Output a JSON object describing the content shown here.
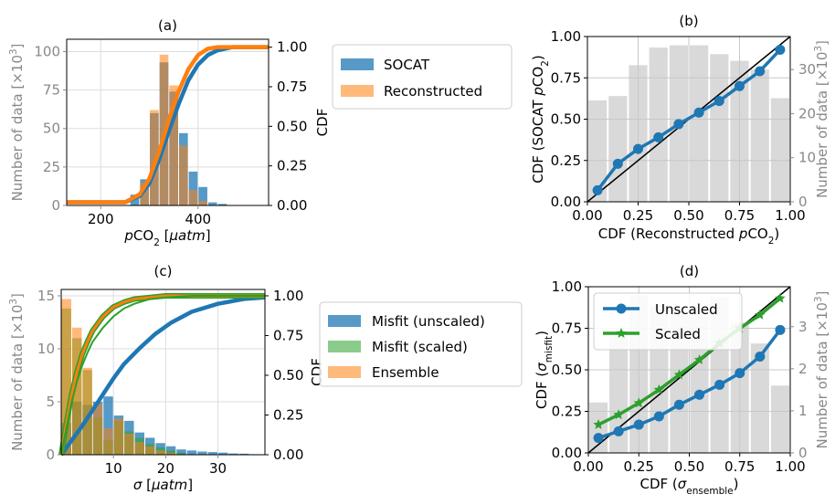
{
  "chart_data": [
    {
      "id": "a",
      "type": "histogram+cdf",
      "title": "(a)",
      "xlabel": "pCO2 [μatm]",
      "ylabel_left": "Number of data [×10³]",
      "ylabel_right": "CDF",
      "xlim": [
        130,
        545
      ],
      "ylim_left": [
        0,
        108
      ],
      "ylim_right": [
        0,
        1.05
      ],
      "xticks": [
        200,
        400
      ],
      "yticks_left": [
        0,
        25,
        50,
        75,
        100
      ],
      "yticks_right": [
        "0.00",
        "0.25",
        "0.50",
        "0.75",
        "1.00"
      ],
      "legend_position": "outside-right",
      "legend": [
        {
          "label": "SOCAT",
          "color": "#1f77b4"
        },
        {
          "label": "Reconstructed",
          "color": "#ff7f0e"
        }
      ],
      "series": [
        {
          "name": "SOCAT",
          "bins": [
            [
              260,
              280,
              7
            ],
            [
              280,
              300,
              17
            ],
            [
              300,
              320,
              60
            ],
            [
              320,
              340,
              93
            ],
            [
              340,
              360,
              74
            ],
            [
              360,
              380,
              47
            ],
            [
              380,
              400,
              22
            ],
            [
              400,
              420,
              12
            ],
            [
              420,
              440,
              2
            ],
            [
              440,
              460,
              1
            ]
          ]
        },
        {
          "name": "Reconstructed",
          "bins": [
            [
              280,
              300,
              15
            ],
            [
              300,
              320,
              62
            ],
            [
              320,
              340,
              98
            ],
            [
              340,
              360,
              78
            ],
            [
              360,
              380,
              39
            ],
            [
              380,
              400,
              10
            ],
            [
              400,
              420,
              3
            ]
          ]
        }
      ],
      "cdf": [
        {
          "name": "SOCAT",
          "x": [
            130,
            250,
            280,
            300,
            320,
            340,
            360,
            380,
            400,
            420,
            440,
            470,
            545
          ],
          "y": [
            0.02,
            0.02,
            0.06,
            0.14,
            0.29,
            0.47,
            0.64,
            0.79,
            0.89,
            0.95,
            0.98,
            1.0,
            1.0
          ]
        },
        {
          "name": "Reconstructed",
          "x": [
            130,
            250,
            280,
            300,
            320,
            340,
            360,
            380,
            400,
            420,
            440,
            545
          ],
          "y": [
            0.02,
            0.02,
            0.07,
            0.17,
            0.34,
            0.54,
            0.72,
            0.86,
            0.95,
            0.99,
            1.0,
            1.0
          ]
        }
      ]
    },
    {
      "id": "b",
      "type": "line+bar",
      "title": "(b)",
      "xlabel": "CDF (Reconstructed pCO2)",
      "ylabel_left": "CDF (SOCAT pCO2)",
      "ylabel_right": "Number of data [×10³]",
      "xlim": [
        0,
        1
      ],
      "ylim_left": [
        0,
        1
      ],
      "ylim_right": [
        0,
        37.5
      ],
      "xticks": [
        "0.00",
        "0.25",
        "0.50",
        "0.75",
        "1.00"
      ],
      "yticks_left": [
        "0.00",
        "0.25",
        "0.50",
        "0.75",
        "1.00"
      ],
      "yticks_right": [
        "0",
        "10",
        "20",
        "30"
      ],
      "bars": [
        23,
        24,
        31,
        35,
        35.5,
        35.5,
        33.5,
        32,
        30,
        23.5
      ],
      "line_x": [
        0.05,
        0.15,
        0.25,
        0.35,
        0.45,
        0.55,
        0.65,
        0.75,
        0.85,
        0.95
      ],
      "line_y": [
        0.07,
        0.23,
        0.32,
        0.39,
        0.47,
        0.54,
        0.61,
        0.7,
        0.79,
        0.92
      ]
    },
    {
      "id": "c",
      "type": "histogram+cdf",
      "title": "(c)",
      "xlabel": "σ [μatm]",
      "ylabel_left": "Number of data [×10³]",
      "ylabel_right": "CDF",
      "xlim": [
        0,
        39
      ],
      "ylim_left": [
        0,
        15.6
      ],
      "ylim_right": [
        0,
        1.04
      ],
      "xticks": [
        10,
        20,
        30
      ],
      "yticks_left": [
        0,
        5,
        10,
        15
      ],
      "yticks_right": [
        "0.00",
        "0.25",
        "0.50",
        "0.75",
        "1.00"
      ],
      "legend_position": "outside-right",
      "legend": [
        {
          "label": "Misfit (unscaled)",
          "color": "#1f77b4"
        },
        {
          "label": "Misfit (scaled)",
          "color": "#2ca02c"
        },
        {
          "label": "Ensemble",
          "color": "#ff7f0e"
        }
      ],
      "series": [
        {
          "name": "Misfit (unscaled)",
          "bins": [
            [
              0,
              2,
              3
            ],
            [
              2,
              4,
              5
            ],
            [
              4,
              6,
              4.7
            ],
            [
              6,
              8,
              5
            ],
            [
              8,
              10,
              5.5
            ],
            [
              10,
              12,
              3.7
            ],
            [
              12,
              14,
              3.2
            ],
            [
              14,
              16,
              2.1
            ],
            [
              16,
              18,
              1.6
            ],
            [
              18,
              20,
              1.1
            ],
            [
              20,
              22,
              0.8
            ],
            [
              22,
              24,
              0.5
            ],
            [
              24,
              26,
              0.4
            ],
            [
              26,
              28,
              0.3
            ],
            [
              28,
              30,
              0.25
            ],
            [
              30,
              32,
              0.2
            ],
            [
              32,
              34,
              0.12
            ],
            [
              34,
              36,
              0.1
            ],
            [
              36,
              38,
              0.05
            ]
          ]
        },
        {
          "name": "Misfit (scaled)",
          "bins": [
            [
              0,
              2,
              13.8
            ],
            [
              2,
              4,
              11
            ],
            [
              4,
              6,
              8
            ],
            [
              6,
              8,
              3.5
            ],
            [
              8,
              10,
              1.4
            ],
            [
              10,
              12,
              3.2
            ],
            [
              12,
              14,
              2.2
            ],
            [
              14,
              16,
              1.6
            ],
            [
              16,
              18,
              1.0
            ],
            [
              18,
              20,
              0.7
            ],
            [
              20,
              22,
              0.4
            ],
            [
              22,
              24,
              0.2
            ]
          ]
        },
        {
          "name": "Ensemble",
          "bins": [
            [
              0,
              2,
              14.7
            ],
            [
              2,
              4,
              12
            ],
            [
              4,
              6,
              8.2
            ],
            [
              6,
              8,
              4.8
            ],
            [
              8,
              10,
              2.5
            ],
            [
              10,
              12,
              3.4
            ],
            [
              12,
              14,
              2.0
            ],
            [
              14,
              16,
              1.2
            ],
            [
              16,
              18,
              0.8
            ],
            [
              18,
              20,
              0.4
            ],
            [
              20,
              22,
              0.2
            ]
          ]
        }
      ],
      "cdf": [
        {
          "name": "Misfit (unscaled)",
          "x": [
            0,
            2,
            4,
            6,
            8,
            10,
            12,
            15,
            18,
            21,
            25,
            30,
            35,
            39
          ],
          "y": [
            0,
            0.09,
            0.18,
            0.28,
            0.38,
            0.48,
            0.57,
            0.67,
            0.76,
            0.83,
            0.9,
            0.95,
            0.98,
            0.99
          ]
        },
        {
          "name": "Misfit (scaled)",
          "x": [
            0,
            1,
            2,
            3,
            4,
            5,
            6,
            8,
            10,
            12,
            14,
            17,
            20,
            25,
            39
          ],
          "y": [
            0,
            0.17,
            0.33,
            0.46,
            0.56,
            0.64,
            0.71,
            0.8,
            0.87,
            0.92,
            0.95,
            0.98,
            0.99,
            1.0,
            1.0
          ]
        },
        {
          "name": "Ensemble",
          "x": [
            0,
            1,
            2,
            3,
            4,
            5,
            6,
            8,
            10,
            12,
            14,
            17,
            20,
            25,
            39
          ],
          "y": [
            0,
            0.2,
            0.38,
            0.52,
            0.63,
            0.71,
            0.78,
            0.87,
            0.93,
            0.96,
            0.98,
            0.99,
            1.0,
            1.0,
            1.0
          ]
        }
      ]
    },
    {
      "id": "d",
      "type": "line+bar",
      "title": "(d)",
      "xlabel": "CDF (σensemble)",
      "ylabel_left": "CDF (σmisfit)",
      "ylabel_right": "Number of data [×10³]",
      "xlim": [
        0,
        1
      ],
      "ylim_left": [
        0,
        1
      ],
      "ylim_right": [
        0,
        3.95
      ],
      "xticks": [
        "0.00",
        "0.25",
        "0.50",
        "0.75",
        "1.00"
      ],
      "yticks_left": [
        "0.00",
        "0.25",
        "0.50",
        "0.75",
        "1.00"
      ],
      "yticks_right": [
        "0",
        "1",
        "2",
        "3"
      ],
      "legend_position": "upper-left",
      "bars": [
        1.2,
        2.85,
        3.75,
        3.5,
        3.45,
        3.35,
        3.7,
        3.1,
        2.6,
        1.6
      ],
      "series": [
        {
          "name": "Unscaled",
          "color": "#1f77b4",
          "marker": "circle",
          "x": [
            0.05,
            0.15,
            0.25,
            0.35,
            0.45,
            0.55,
            0.65,
            0.75,
            0.85,
            0.95
          ],
          "y": [
            0.09,
            0.13,
            0.17,
            0.22,
            0.29,
            0.35,
            0.41,
            0.48,
            0.58,
            0.74
          ]
        },
        {
          "name": "Scaled",
          "color": "#2ca02c",
          "marker": "star",
          "x": [
            0.05,
            0.15,
            0.25,
            0.35,
            0.45,
            0.55,
            0.65,
            0.75,
            0.85,
            0.95
          ],
          "y": [
            0.17,
            0.23,
            0.3,
            0.38,
            0.47,
            0.56,
            0.66,
            0.75,
            0.83,
            0.93
          ]
        }
      ]
    }
  ]
}
